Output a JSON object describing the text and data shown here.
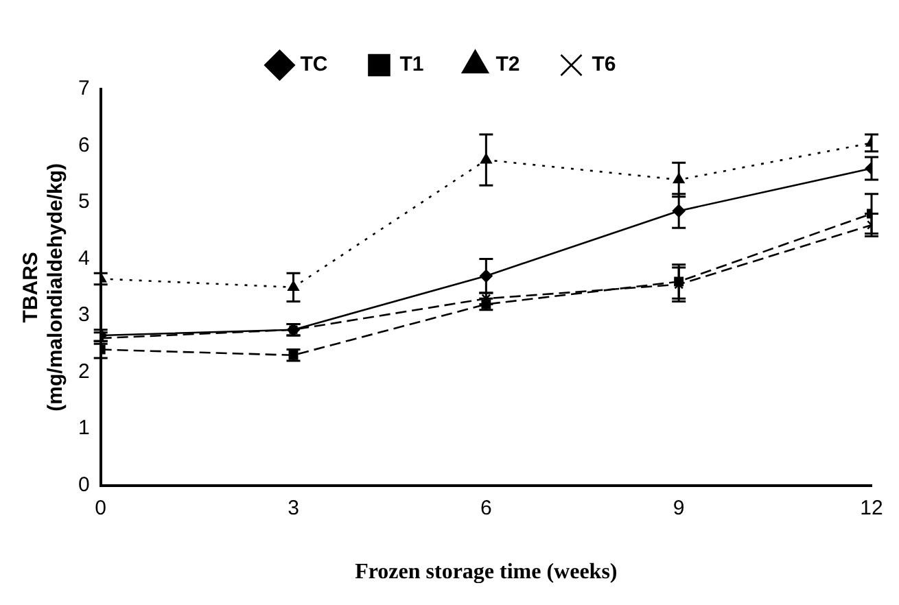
{
  "chart_data": {
    "type": "line",
    "xlabel": "Frozen storage time (weeks)",
    "ylabel": "TBARS\n(mg/malondialdehyde/kg)",
    "x": [
      0,
      3,
      6,
      9,
      12
    ],
    "xlim": [
      0,
      12
    ],
    "xticks": [
      0,
      3,
      6,
      9,
      12
    ],
    "ylim": [
      0,
      7
    ],
    "yticks": [
      0,
      1,
      2,
      3,
      4,
      5,
      6,
      7
    ],
    "grid": false,
    "legend": "top",
    "series": [
      {
        "name": "TC",
        "color": "#000000",
        "line_style": "solid",
        "marker": "diamond",
        "values": [
          2.65,
          2.75,
          3.7,
          4.85,
          5.6
        ],
        "errors": [
          0.1,
          0.1,
          0.3,
          0.3,
          0.2
        ]
      },
      {
        "name": "T1",
        "color": "#000000",
        "line_style": "dashed",
        "marker": "square",
        "values": [
          2.4,
          2.3,
          3.2,
          3.6,
          4.8
        ],
        "errors": [
          0.15,
          0.1,
          0.1,
          0.3,
          0.35
        ]
      },
      {
        "name": "T2",
        "color": "#000000",
        "line_style": "dotted",
        "marker": "triangle",
        "values": [
          3.65,
          3.5,
          5.75,
          5.4,
          6.05
        ],
        "errors": [
          0.1,
          0.25,
          0.45,
          0.3,
          0.15
        ]
      },
      {
        "name": "T6",
        "color": "#000000",
        "line_style": "dashed",
        "marker": "cross",
        "values": [
          2.6,
          2.75,
          3.3,
          3.55,
          4.6
        ],
        "errors": [
          0.1,
          0.1,
          0.1,
          0.3,
          0.2
        ]
      }
    ]
  }
}
